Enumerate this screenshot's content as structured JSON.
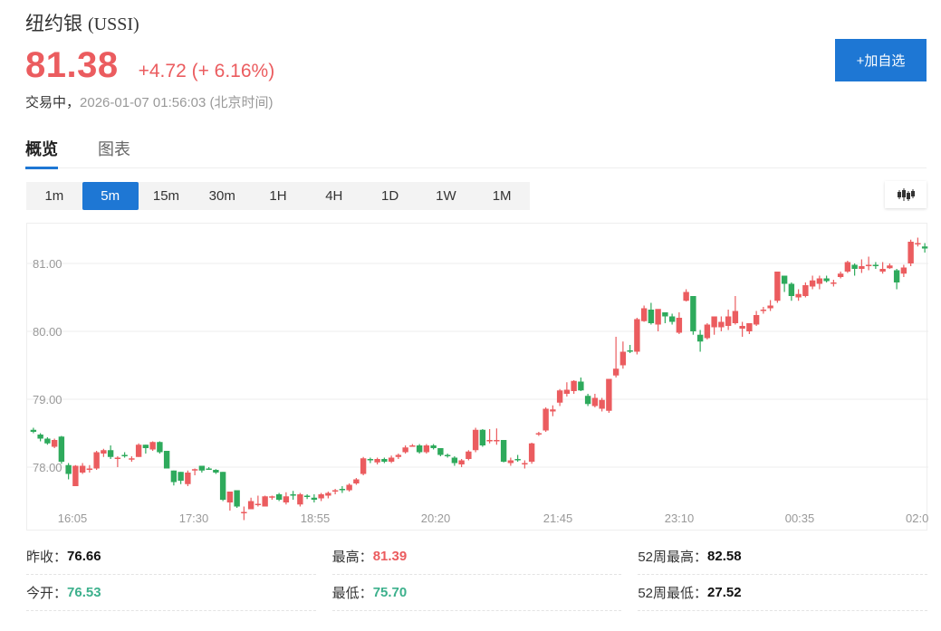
{
  "header": {
    "name": "纽约银",
    "code": "(USSI)",
    "price": "81.38",
    "change": "+4.72 (+ 6.16%)",
    "status_label": "交易中，",
    "timestamp": "2026-01-07 01:56:03 (北京时间)",
    "add_watchlist_label": "+加自选"
  },
  "tabs": [
    {
      "label": "概览",
      "active": true
    },
    {
      "label": "图表",
      "active": false
    }
  ],
  "intervals": [
    {
      "label": "1m",
      "active": false
    },
    {
      "label": "5m",
      "active": true
    },
    {
      "label": "15m",
      "active": false
    },
    {
      "label": "30m",
      "active": false
    },
    {
      "label": "1H",
      "active": false
    },
    {
      "label": "4H",
      "active": false
    },
    {
      "label": "1D",
      "active": false
    },
    {
      "label": "1W",
      "active": false
    },
    {
      "label": "1M",
      "active": false
    }
  ],
  "chart_type_icon": "candlestick-icon",
  "colors": {
    "up": "#eb5c5f",
    "down": "#2eaa5c",
    "accent": "#1e77d4"
  },
  "chart_data": {
    "type": "candlestick",
    "title": "",
    "xlabel": "",
    "ylabel": "",
    "y_ticks": [
      "81.00",
      "80.00",
      "79.00",
      "78.00"
    ],
    "x_ticks": [
      "16:05",
      "17:30",
      "18:55",
      "20:20",
      "21:45",
      "23:10",
      "00:35",
      "02:0"
    ],
    "ylim": [
      77.3,
      81.5
    ],
    "grid": true,
    "candles": [
      [
        78.55,
        78.58,
        78.5,
        78.52
      ],
      [
        78.48,
        78.5,
        78.38,
        78.42
      ],
      [
        78.42,
        78.44,
        78.33,
        78.35
      ],
      [
        78.3,
        78.42,
        78.28,
        78.4
      ],
      [
        78.45,
        78.46,
        78.05,
        78.08
      ],
      [
        78.03,
        78.06,
        77.82,
        77.9
      ],
      [
        77.72,
        78.03,
        77.72,
        78.02
      ],
      [
        77.92,
        78.06,
        77.9,
        78.02
      ],
      [
        77.98,
        78.03,
        77.92,
        77.98
      ],
      [
        77.98,
        78.24,
        77.96,
        78.22
      ],
      [
        78.2,
        78.27,
        78.15,
        78.25
      ],
      [
        78.25,
        78.32,
        78.12,
        78.15
      ],
      [
        78.12,
        78.16,
        78.0,
        78.14
      ],
      [
        78.18,
        78.22,
        78.14,
        78.17
      ],
      [
        78.12,
        78.16,
        78.08,
        78.13
      ],
      [
        78.15,
        78.35,
        78.15,
        78.33
      ],
      [
        78.33,
        78.33,
        78.2,
        78.28
      ],
      [
        78.26,
        78.38,
        78.24,
        78.37
      ],
      [
        78.37,
        78.38,
        78.2,
        78.22
      ],
      [
        78.24,
        78.24,
        77.98,
        77.98
      ],
      [
        77.95,
        77.95,
        77.73,
        77.78
      ],
      [
        77.93,
        77.93,
        77.75,
        77.8
      ],
      [
        77.75,
        77.95,
        77.72,
        77.92
      ],
      [
        77.95,
        77.98,
        77.88,
        77.97
      ],
      [
        78.02,
        78.02,
        77.92,
        77.95
      ],
      [
        77.98,
        78.0,
        77.96,
        77.97
      ],
      [
        77.96,
        77.97,
        77.9,
        77.92
      ],
      [
        77.93,
        77.93,
        77.5,
        77.52
      ],
      [
        77.48,
        77.62,
        77.36,
        77.64
      ],
      [
        77.66,
        77.66,
        77.4,
        77.42
      ],
      [
        77.33,
        77.42,
        77.22,
        77.34
      ],
      [
        77.38,
        77.55,
        77.38,
        77.5
      ],
      [
        77.45,
        77.58,
        77.42,
        77.46
      ],
      [
        77.42,
        77.58,
        77.42,
        77.57
      ],
      [
        77.56,
        77.58,
        77.52,
        77.57
      ],
      [
        77.6,
        77.62,
        77.5,
        77.52
      ],
      [
        77.48,
        77.63,
        77.45,
        77.57
      ],
      [
        77.6,
        77.65,
        77.52,
        77.58
      ],
      [
        77.45,
        77.62,
        77.42,
        77.6
      ],
      [
        77.58,
        77.6,
        77.53,
        77.56
      ],
      [
        77.55,
        77.6,
        77.48,
        77.52
      ],
      [
        77.54,
        77.62,
        77.5,
        77.6
      ],
      [
        77.58,
        77.64,
        77.54,
        77.62
      ],
      [
        77.64,
        77.68,
        77.6,
        77.66
      ],
      [
        77.68,
        77.72,
        77.62,
        77.66
      ],
      [
        77.66,
        77.76,
        77.64,
        77.74
      ],
      [
        77.76,
        77.84,
        77.74,
        77.82
      ],
      [
        77.9,
        78.15,
        77.88,
        78.13
      ],
      [
        78.12,
        78.14,
        78.06,
        78.1
      ],
      [
        78.07,
        78.14,
        78.04,
        78.12
      ],
      [
        78.12,
        78.14,
        78.06,
        78.08
      ],
      [
        78.08,
        78.17,
        78.06,
        78.14
      ],
      [
        78.15,
        78.2,
        78.12,
        78.18
      ],
      [
        78.22,
        78.32,
        78.2,
        78.29
      ],
      [
        78.3,
        78.34,
        78.3,
        78.32
      ],
      [
        78.32,
        78.34,
        78.2,
        78.22
      ],
      [
        78.22,
        78.34,
        78.2,
        78.32
      ],
      [
        78.32,
        78.34,
        78.26,
        78.28
      ],
      [
        78.28,
        78.28,
        78.16,
        78.18
      ],
      [
        78.18,
        78.2,
        78.14,
        78.16
      ],
      [
        78.14,
        78.16,
        78.02,
        78.06
      ],
      [
        78.04,
        78.12,
        78.0,
        78.1
      ],
      [
        78.12,
        78.25,
        78.1,
        78.23
      ],
      [
        78.25,
        78.58,
        78.22,
        78.55
      ],
      [
        78.55,
        78.56,
        78.3,
        78.32
      ],
      [
        78.38,
        78.56,
        78.35,
        78.4
      ],
      [
        78.38,
        78.57,
        78.33,
        78.4
      ],
      [
        78.4,
        78.4,
        78.07,
        78.08
      ],
      [
        78.06,
        78.14,
        78.02,
        78.1
      ],
      [
        78.12,
        78.18,
        78.08,
        78.1
      ],
      [
        78.05,
        78.1,
        77.98,
        78.06
      ],
      [
        78.08,
        78.36,
        78.05,
        78.35
      ],
      [
        78.48,
        78.52,
        78.46,
        78.5
      ],
      [
        78.54,
        78.88,
        78.52,
        78.86
      ],
      [
        78.82,
        78.91,
        78.75,
        78.85
      ],
      [
        78.95,
        79.15,
        78.9,
        79.13
      ],
      [
        79.08,
        79.25,
        79.04,
        79.14
      ],
      [
        79.12,
        79.28,
        79.08,
        79.27
      ],
      [
        79.26,
        79.32,
        79.12,
        79.13
      ],
      [
        79.05,
        79.08,
        78.9,
        78.93
      ],
      [
        78.9,
        79.08,
        78.88,
        79.02
      ],
      [
        78.86,
        79.02,
        78.82,
        78.99
      ],
      [
        78.83,
        79.25,
        78.8,
        79.3
      ],
      [
        79.35,
        79.92,
        79.32,
        79.45
      ],
      [
        79.5,
        79.85,
        79.45,
        79.7
      ],
      [
        79.72,
        79.8,
        79.68,
        79.7
      ],
      [
        79.7,
        80.2,
        79.66,
        80.18
      ],
      [
        80.15,
        80.38,
        80.14,
        80.34
      ],
      [
        80.32,
        80.42,
        80.1,
        80.12
      ],
      [
        80.1,
        80.32,
        80.0,
        80.33
      ],
      [
        80.28,
        80.28,
        80.12,
        80.22
      ],
      [
        80.22,
        80.26,
        80.1,
        80.14
      ],
      [
        79.98,
        80.28,
        79.96,
        80.2
      ],
      [
        80.45,
        80.62,
        80.44,
        80.58
      ],
      [
        80.52,
        80.52,
        79.95,
        80.0
      ],
      [
        79.95,
        80.02,
        79.7,
        79.85
      ],
      [
        79.9,
        80.12,
        79.88,
        80.1
      ],
      [
        80.06,
        80.22,
        79.95,
        80.22
      ],
      [
        80.06,
        80.22,
        80.0,
        80.14
      ],
      [
        80.08,
        80.32,
        80.02,
        80.22
      ],
      [
        80.12,
        80.52,
        80.1,
        80.3
      ],
      [
        80.04,
        80.14,
        79.92,
        80.08
      ],
      [
        80.0,
        80.12,
        79.96,
        80.12
      ],
      [
        80.1,
        80.3,
        80.08,
        80.24
      ],
      [
        80.3,
        80.36,
        80.26,
        80.32
      ],
      [
        80.34,
        80.46,
        80.3,
        80.38
      ],
      [
        80.45,
        80.88,
        80.42,
        80.88
      ],
      [
        80.82,
        80.82,
        80.58,
        80.7
      ],
      [
        80.7,
        80.72,
        80.45,
        80.52
      ],
      [
        80.5,
        80.62,
        80.45,
        80.55
      ],
      [
        80.52,
        80.72,
        80.5,
        80.68
      ],
      [
        80.66,
        80.82,
        80.62,
        80.75
      ],
      [
        80.7,
        80.82,
        80.62,
        80.78
      ],
      [
        80.78,
        80.82,
        80.72,
        80.74
      ],
      [
        80.72,
        80.76,
        80.66,
        80.72
      ],
      [
        80.8,
        80.88,
        80.78,
        80.85
      ],
      [
        80.88,
        81.04,
        80.86,
        81.02
      ],
      [
        80.98,
        81.0,
        80.82,
        80.92
      ],
      [
        80.92,
        81.06,
        80.86,
        80.96
      ],
      [
        80.96,
        81.1,
        80.9,
        80.98
      ],
      [
        80.98,
        81.02,
        80.92,
        80.96
      ],
      [
        80.88,
        81.02,
        80.85,
        80.92
      ],
      [
        80.93,
        81.0,
        80.92,
        80.97
      ],
      [
        80.9,
        80.92,
        80.62,
        80.72
      ],
      [
        80.85,
        80.98,
        80.8,
        80.94
      ],
      [
        81.0,
        81.35,
        80.96,
        81.32
      ],
      [
        81.3,
        81.38,
        81.25,
        81.3
      ],
      [
        81.25,
        81.3,
        81.16,
        81.22
      ]
    ]
  },
  "stats": [
    [
      {
        "label": "昨收：",
        "value": "76.66",
        "color": "black"
      },
      {
        "label": "最高：",
        "value": "81.39",
        "color": "red"
      },
      {
        "label": "52周最高：",
        "value": "82.58",
        "color": "black"
      }
    ],
    [
      {
        "label": "今开：",
        "value": "76.53",
        "color": "green"
      },
      {
        "label": "最低：",
        "value": "75.70",
        "color": "green"
      },
      {
        "label": "52周最低：",
        "value": "27.52",
        "color": "black"
      }
    ]
  ]
}
